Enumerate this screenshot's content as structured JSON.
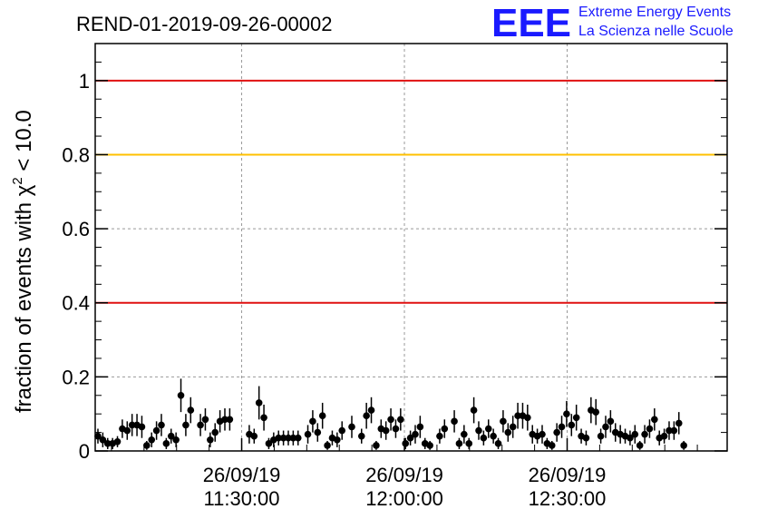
{
  "chart_data": {
    "type": "scatter",
    "title": "REND-01-2019-09-26-00002",
    "ylabel_prefix": "fraction of events with χ",
    "ylabel_sup": "2",
    "ylabel_suffix": " < 10.0",
    "ylim": [
      0,
      1.1
    ],
    "yticks": [
      {
        "value": 0,
        "label": "0"
      },
      {
        "value": 0.2,
        "label": "0.2"
      },
      {
        "value": 0.4,
        "label": "0.4"
      },
      {
        "value": 0.6,
        "label": "0.6"
      },
      {
        "value": 0.8,
        "label": "0.8"
      },
      {
        "value": 1,
        "label": "1"
      }
    ],
    "xlim_minutes": [
      0,
      116.5
    ],
    "xticks": [
      {
        "minutes": 27,
        "date": "26/09/19",
        "time": "11:30:00"
      },
      {
        "minutes": 57,
        "date": "26/09/19",
        "time": "12:00:00"
      },
      {
        "minutes": 87,
        "date": "26/09/19",
        "time": "12:30:00"
      }
    ],
    "grid": true,
    "reference_lines": [
      {
        "value": 1.0,
        "color": "#e01010"
      },
      {
        "value": 0.8,
        "color": "#ffc000"
      },
      {
        "value": 0.4,
        "color": "#e01010"
      }
    ],
    "points": [
      [
        0.5,
        0.04,
        0.02
      ],
      [
        1.4,
        0.03,
        0.02
      ],
      [
        2.3,
        0.02,
        0.015
      ],
      [
        3.2,
        0.02,
        0.015
      ],
      [
        4.1,
        0.025,
        0.015
      ],
      [
        5.0,
        0.06,
        0.025
      ],
      [
        5.9,
        0.055,
        0.025
      ],
      [
        6.8,
        0.07,
        0.03
      ],
      [
        7.7,
        0.07,
        0.03
      ],
      [
        8.6,
        0.065,
        0.03
      ],
      [
        9.5,
        0.015,
        0.012
      ],
      [
        10.4,
        0.03,
        0.02
      ],
      [
        11.3,
        0.055,
        0.025
      ],
      [
        12.2,
        0.07,
        0.03
      ],
      [
        13.1,
        0.02,
        0.015
      ],
      [
        14.0,
        0.04,
        0.02
      ],
      [
        14.9,
        0.03,
        0.02
      ],
      [
        15.8,
        0.15,
        0.045
      ],
      [
        16.7,
        0.07,
        0.03
      ],
      [
        17.6,
        0.11,
        0.035
      ],
      [
        19.4,
        0.07,
        0.03
      ],
      [
        20.3,
        0.085,
        0.03
      ],
      [
        21.2,
        0.03,
        0.02
      ],
      [
        22.1,
        0.05,
        0.025
      ],
      [
        23.0,
        0.08,
        0.03
      ],
      [
        23.9,
        0.085,
        0.03
      ],
      [
        24.8,
        0.085,
        0.03
      ],
      [
        28.4,
        0.045,
        0.025
      ],
      [
        29.3,
        0.04,
        0.02
      ],
      [
        30.2,
        0.13,
        0.045
      ],
      [
        31.1,
        0.09,
        0.035
      ],
      [
        32.0,
        0.02,
        0.015
      ],
      [
        32.9,
        0.03,
        0.02
      ],
      [
        33.8,
        0.035,
        0.02
      ],
      [
        34.7,
        0.035,
        0.02
      ],
      [
        35.6,
        0.035,
        0.02
      ],
      [
        36.5,
        0.035,
        0.02
      ],
      [
        37.4,
        0.035,
        0.02
      ],
      [
        39.2,
        0.045,
        0.025
      ],
      [
        40.1,
        0.08,
        0.03
      ],
      [
        41.0,
        0.05,
        0.025
      ],
      [
        41.9,
        0.095,
        0.035
      ],
      [
        42.8,
        0.015,
        0.012
      ],
      [
        43.7,
        0.035,
        0.02
      ],
      [
        44.6,
        0.03,
        0.02
      ],
      [
        45.5,
        0.055,
        0.025
      ],
      [
        47.3,
        0.065,
        0.03
      ],
      [
        49.1,
        0.04,
        0.02
      ],
      [
        50.0,
        0.095,
        0.035
      ],
      [
        50.9,
        0.11,
        0.035
      ],
      [
        51.8,
        0.015,
        0.012
      ],
      [
        52.7,
        0.06,
        0.025
      ],
      [
        53.6,
        0.055,
        0.025
      ],
      [
        54.5,
        0.085,
        0.03
      ],
      [
        55.4,
        0.06,
        0.025
      ],
      [
        56.3,
        0.085,
        0.03
      ],
      [
        57.2,
        0.02,
        0.015
      ],
      [
        58.1,
        0.035,
        0.02
      ],
      [
        59.0,
        0.045,
        0.025
      ],
      [
        59.9,
        0.065,
        0.03
      ],
      [
        60.8,
        0.02,
        0.015
      ],
      [
        61.7,
        0.015,
        0.012
      ],
      [
        63.5,
        0.04,
        0.02
      ],
      [
        64.4,
        0.06,
        0.025
      ],
      [
        66.2,
        0.08,
        0.03
      ],
      [
        67.1,
        0.02,
        0.015
      ],
      [
        68.0,
        0.045,
        0.025
      ],
      [
        68.9,
        0.02,
        0.015
      ],
      [
        69.8,
        0.11,
        0.035
      ],
      [
        70.7,
        0.055,
        0.025
      ],
      [
        71.6,
        0.035,
        0.02
      ],
      [
        72.5,
        0.06,
        0.025
      ],
      [
        73.4,
        0.04,
        0.02
      ],
      [
        74.3,
        0.02,
        0.015
      ],
      [
        75.2,
        0.08,
        0.03
      ],
      [
        76.1,
        0.05,
        0.025
      ],
      [
        77.0,
        0.065,
        0.03
      ],
      [
        77.9,
        0.095,
        0.035
      ],
      [
        78.8,
        0.095,
        0.035
      ],
      [
        79.7,
        0.09,
        0.035
      ],
      [
        80.6,
        0.045,
        0.025
      ],
      [
        81.5,
        0.04,
        0.02
      ],
      [
        82.4,
        0.045,
        0.025
      ],
      [
        83.3,
        0.02,
        0.015
      ],
      [
        84.2,
        0.015,
        0.012
      ],
      [
        85.1,
        0.05,
        0.025
      ],
      [
        86.0,
        0.065,
        0.03
      ],
      [
        86.9,
        0.1,
        0.035
      ],
      [
        87.8,
        0.07,
        0.03
      ],
      [
        88.7,
        0.09,
        0.035
      ],
      [
        89.6,
        0.04,
        0.02
      ],
      [
        90.5,
        0.035,
        0.02
      ],
      [
        91.4,
        0.11,
        0.035
      ],
      [
        92.3,
        0.105,
        0.035
      ],
      [
        93.2,
        0.04,
        0.02
      ],
      [
        94.1,
        0.065,
        0.03
      ],
      [
        95.0,
        0.08,
        0.03
      ],
      [
        95.9,
        0.05,
        0.025
      ],
      [
        96.8,
        0.045,
        0.025
      ],
      [
        97.7,
        0.04,
        0.02
      ],
      [
        98.6,
        0.035,
        0.02
      ],
      [
        99.5,
        0.045,
        0.025
      ],
      [
        100.4,
        0.015,
        0.012
      ],
      [
        101.3,
        0.045,
        0.025
      ],
      [
        102.2,
        0.06,
        0.025
      ],
      [
        103.1,
        0.085,
        0.03
      ],
      [
        104.0,
        0.035,
        0.02
      ],
      [
        104.9,
        0.04,
        0.02
      ],
      [
        105.8,
        0.055,
        0.025
      ],
      [
        106.7,
        0.055,
        0.025
      ],
      [
        107.6,
        0.075,
        0.03
      ],
      [
        108.5,
        0.015,
        0.012
      ]
    ]
  },
  "logo": {
    "letters": "EEE",
    "line1": "Extreme Energy Events",
    "line2": "La Scienza nelle Scuole"
  },
  "colors": {
    "grid": "#999999",
    "marker": "#000000",
    "logo": "#1a1aff"
  }
}
